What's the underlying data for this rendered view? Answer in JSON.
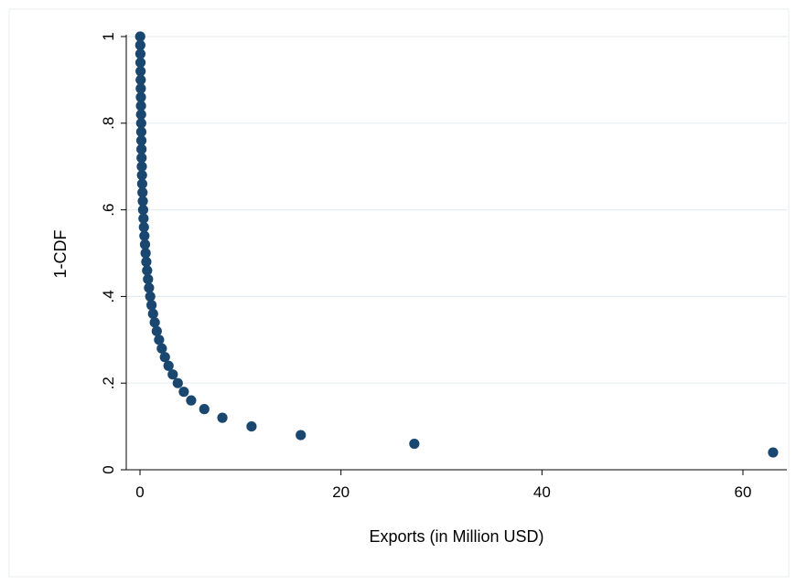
{
  "chart_data": {
    "type": "scatter",
    "title": "",
    "xlabel": "Exports (in Million USD)",
    "ylabel": "1-CDF",
    "xlim": [
      0,
      64
    ],
    "ylim": [
      0,
      1
    ],
    "x_ticks": [
      0,
      20,
      40,
      60
    ],
    "x_tick_labels": [
      "0",
      "20",
      "40",
      "60"
    ],
    "y_ticks": [
      0,
      0.2,
      0.4,
      0.6,
      0.8,
      1
    ],
    "y_tick_labels": [
      "0",
      ".2",
      ".4",
      ".6",
      ".8",
      "1"
    ],
    "grid": "horizontal",
    "marker_color": "#1a476f",
    "series": [
      {
        "points": [
          [
            0.02,
            1.0
          ],
          [
            0.03,
            0.98
          ],
          [
            0.04,
            0.96
          ],
          [
            0.05,
            0.94
          ],
          [
            0.06,
            0.92
          ],
          [
            0.07,
            0.9
          ],
          [
            0.08,
            0.88
          ],
          [
            0.09,
            0.86
          ],
          [
            0.1,
            0.84
          ],
          [
            0.11,
            0.82
          ],
          [
            0.12,
            0.8
          ],
          [
            0.13,
            0.78
          ],
          [
            0.14,
            0.76
          ],
          [
            0.15,
            0.74
          ],
          [
            0.16,
            0.72
          ],
          [
            0.18,
            0.7
          ],
          [
            0.2,
            0.68
          ],
          [
            0.22,
            0.66
          ],
          [
            0.25,
            0.64
          ],
          [
            0.28,
            0.62
          ],
          [
            0.31,
            0.6
          ],
          [
            0.35,
            0.58
          ],
          [
            0.39,
            0.56
          ],
          [
            0.44,
            0.54
          ],
          [
            0.5,
            0.52
          ],
          [
            0.56,
            0.5
          ],
          [
            0.63,
            0.48
          ],
          [
            0.71,
            0.46
          ],
          [
            0.8,
            0.44
          ],
          [
            0.9,
            0.42
          ],
          [
            1.02,
            0.4
          ],
          [
            1.15,
            0.38
          ],
          [
            1.3,
            0.36
          ],
          [
            1.47,
            0.34
          ],
          [
            1.67,
            0.32
          ],
          [
            1.9,
            0.3
          ],
          [
            2.17,
            0.28
          ],
          [
            2.48,
            0.26
          ],
          [
            2.84,
            0.24
          ],
          [
            3.26,
            0.22
          ],
          [
            3.76,
            0.2
          ],
          [
            4.36,
            0.18
          ],
          [
            5.09,
            0.16
          ],
          [
            6.4,
            0.14
          ],
          [
            8.2,
            0.12
          ],
          [
            11.1,
            0.1
          ],
          [
            16.0,
            0.08
          ],
          [
            27.3,
            0.06
          ],
          [
            63.0,
            0.04
          ]
        ]
      }
    ]
  }
}
